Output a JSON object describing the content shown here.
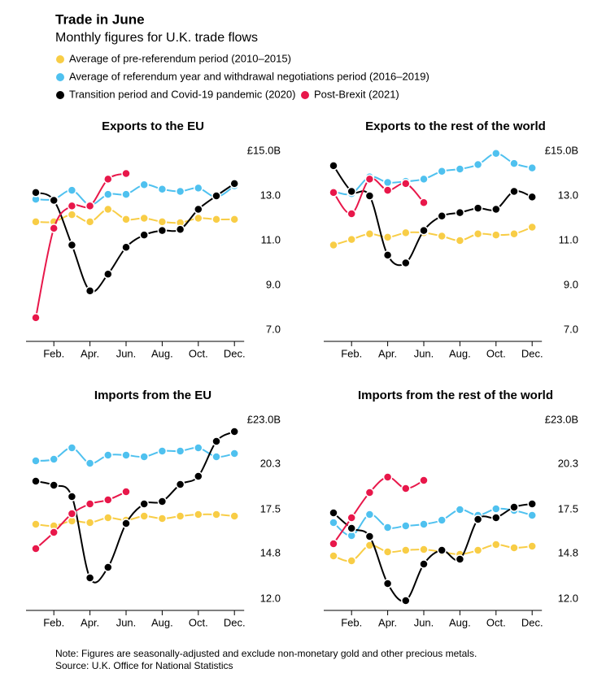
{
  "title": "Trade in June",
  "subtitle": "Monthly figures for U.K. trade flows",
  "note": "Note: Figures are seasonally-adjusted and exclude non-monetary gold and other precious metals.",
  "source": "Source: U.K. Office for National Statistics",
  "chart_data": [
    {
      "type": "line",
      "title": "Exports to the EU",
      "categories": [
        null,
        "Feb.",
        null,
        "Apr.",
        null,
        "Jun.",
        null,
        "Aug.",
        null,
        "Oct.",
        null,
        "Dec."
      ],
      "ylim": [
        7,
        15
      ],
      "yticks": [
        {
          "value": 15,
          "label": "£15.0B"
        },
        {
          "value": 13,
          "label": "13.0"
        },
        {
          "value": 11,
          "label": "11.0"
        },
        {
          "value": 9,
          "label": "9.0"
        },
        {
          "value": 7,
          "label": "7.0"
        }
      ],
      "series": [
        {
          "name": "Average of pre-referendum period  (2010–2015)",
          "color": "#f8cd46",
          "values": [
            11.84,
            11.84,
            12.16,
            11.84,
            12.4,
            11.95,
            12.0,
            11.84,
            11.8,
            12.0,
            11.95,
            11.95
          ]
        },
        {
          "name": "Average of referendum year and withdrawal negotiations period (2016–2019)",
          "color": "#4fc1ef",
          "values": [
            12.85,
            12.85,
            13.25,
            12.6,
            13.07,
            13.07,
            13.5,
            13.3,
            13.2,
            13.35,
            12.95,
            13.45
          ]
        },
        {
          "name": "Transition period and Covid-19 pandemic (2020)",
          "color": "#000000",
          "values": [
            13.15,
            12.8,
            10.8,
            8.75,
            9.5,
            10.7,
            11.25,
            11.45,
            11.5,
            12.4,
            13.0,
            13.55
          ]
        },
        {
          "name": "Post-Brexit (2021)",
          "color": "#e8174a",
          "values": [
            7.55,
            11.55,
            12.55,
            12.55,
            13.75,
            14.0,
            null,
            null,
            null,
            null,
            null,
            null
          ]
        }
      ]
    },
    {
      "type": "line",
      "title": "Exports to the rest of the world",
      "categories": [
        null,
        "Feb.",
        null,
        "Apr.",
        null,
        "Jun.",
        null,
        "Aug.",
        null,
        "Oct.",
        null,
        "Dec."
      ],
      "ylim": [
        7,
        15
      ],
      "yticks": [
        {
          "value": 15,
          "label": "£15.0B"
        },
        {
          "value": 13,
          "label": "13.0"
        },
        {
          "value": 11,
          "label": "11.0"
        },
        {
          "value": 9,
          "label": "9.0"
        },
        {
          "value": 7,
          "label": "7.0"
        }
      ],
      "series": [
        {
          "name": "Average of pre-referendum period  (2010–2015)",
          "color": "#f8cd46",
          "values": [
            10.8,
            11.05,
            11.3,
            11.15,
            11.35,
            11.35,
            11.2,
            11.0,
            11.3,
            11.25,
            11.3,
            11.6
          ]
        },
        {
          "name": "Average of referendum year and withdrawal negotiations period (2016–2019)",
          "color": "#4fc1ef",
          "values": [
            13.2,
            13.1,
            13.85,
            13.6,
            13.65,
            13.75,
            14.1,
            14.2,
            14.4,
            14.9,
            14.45,
            14.25
          ]
        },
        {
          "name": "Transition period and Covid-19 pandemic (2020)",
          "color": "#000000",
          "values": [
            14.35,
            13.2,
            13.0,
            10.35,
            10.0,
            11.45,
            12.1,
            12.25,
            12.45,
            12.4,
            13.2,
            12.95
          ]
        },
        {
          "name": "Post-Brexit (2021)",
          "color": "#e8174a",
          "values": [
            13.15,
            12.2,
            13.75,
            13.25,
            13.55,
            12.7,
            null,
            null,
            null,
            null,
            null,
            null
          ]
        }
      ]
    },
    {
      "type": "line",
      "title": "Imports from the EU",
      "categories": [
        null,
        "Feb.",
        null,
        "Apr.",
        null,
        "Jun.",
        null,
        "Aug.",
        null,
        "Oct.",
        null,
        "Dec."
      ],
      "ylim": [
        12,
        23
      ],
      "yticks": [
        {
          "value": 23,
          "label": "£23.0B"
        },
        20.3,
        17.5,
        14.8,
        {
          "value": 12,
          "label": "12.0"
        }
      ],
      "series": [
        {
          "name": "Average of pre-referendum period  (2010–2015)",
          "color": "#f8cd46",
          "values": [
            16.6,
            16.5,
            16.8,
            16.7,
            17.0,
            16.85,
            17.1,
            16.95,
            17.1,
            17.2,
            17.2,
            17.1
          ]
        },
        {
          "name": "Average of referendum year and withdrawal negotiations period (2016–2019)",
          "color": "#4fc1ef",
          "values": [
            20.5,
            20.6,
            21.3,
            20.35,
            20.85,
            20.85,
            20.75,
            21.1,
            21.1,
            21.3,
            20.75,
            20.95
          ]
        },
        {
          "name": "Transition period and Covid-19 pandemic (2020)",
          "color": "#000000",
          "values": [
            19.25,
            19.0,
            18.3,
            13.3,
            13.95,
            16.65,
            17.85,
            18.0,
            19.05,
            19.55,
            21.7,
            22.3
          ]
        },
        {
          "name": "Post-Brexit (2021)",
          "color": "#e8174a",
          "values": [
            15.1,
            16.1,
            17.25,
            17.85,
            18.1,
            18.6,
            null,
            null,
            null,
            null,
            null,
            null
          ]
        }
      ]
    },
    {
      "type": "line",
      "title": "Imports from the rest of the world",
      "categories": [
        null,
        "Feb.",
        null,
        "Apr.",
        null,
        "Jun.",
        null,
        "Aug.",
        null,
        "Oct.",
        null,
        "Dec."
      ],
      "ylim": [
        12,
        23
      ],
      "yticks": [
        {
          "value": 23,
          "label": "£23.0B"
        },
        20.3,
        17.5,
        14.8,
        {
          "value": 12,
          "label": "12.0"
        }
      ],
      "series": [
        {
          "name": "Average of pre-referendum period  (2010–2015)",
          "color": "#f8cd46",
          "values": [
            14.65,
            14.35,
            15.3,
            14.9,
            15.0,
            15.05,
            14.9,
            14.75,
            15.0,
            15.35,
            15.15,
            15.25
          ]
        },
        {
          "name": "Average of referendum year and withdrawal negotiations period (2016–2019)",
          "color": "#4fc1ef",
          "values": [
            16.7,
            15.9,
            17.2,
            16.4,
            16.5,
            16.6,
            16.85,
            17.5,
            17.15,
            17.55,
            17.45,
            17.15
          ]
        },
        {
          "name": "Transition period and Covid-19 pandemic (2020)",
          "color": "#000000",
          "values": [
            17.3,
            16.35,
            15.85,
            12.95,
            11.9,
            14.15,
            15.0,
            14.45,
            16.9,
            17.0,
            17.65,
            17.85
          ]
        },
        {
          "name": "Post-Brexit (2021)",
          "color": "#e8174a",
          "values": [
            15.4,
            17.0,
            18.55,
            19.5,
            18.8,
            19.3,
            null,
            null,
            null,
            null,
            null,
            null
          ]
        }
      ]
    }
  ]
}
